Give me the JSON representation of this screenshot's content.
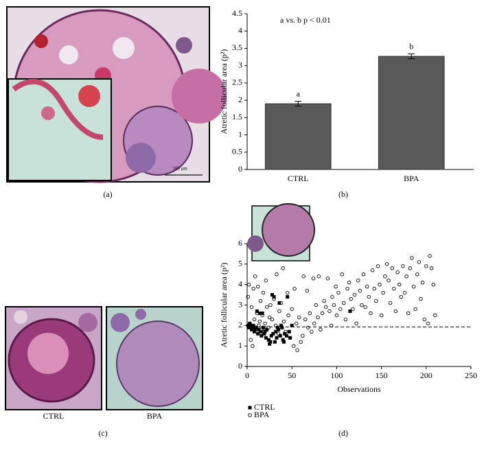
{
  "panel_labels": [
    "(a)",
    "(b)",
    "(c)",
    "(d)"
  ],
  "micrographs": {
    "scale_label": "100 μm",
    "captions": [
      "CTRL",
      "BPA"
    ]
  },
  "chart_data": [
    {
      "type": "bar",
      "y_label": "Atretic follicular area (p²)",
      "annotation": "a vs. b p < 0.01",
      "categories": [
        "CTRL",
        "BPA"
      ],
      "values": [
        1.9,
        3.27
      ],
      "errors": [
        0.07,
        0.07
      ],
      "group_letters": [
        "a",
        "b"
      ],
      "color": "#595959",
      "ylim": [
        0,
        4.5
      ],
      "yticks": [
        0,
        0.5,
        1,
        1.5,
        2,
        2.5,
        3,
        3.5,
        4,
        4.5
      ]
    },
    {
      "type": "scatter",
      "y_label": "Atretic follicular area (p²)",
      "x_label": "Observations",
      "xlim": [
        0,
        250
      ],
      "xticks": [
        0,
        50,
        100,
        150,
        200,
        250
      ],
      "ylim": [
        0,
        6
      ],
      "yticks": [
        0,
        1,
        2,
        3,
        4,
        5,
        6
      ],
      "reference_line": 1.93,
      "series": [
        {
          "name": "CTRL",
          "color": "#000000",
          "marker": "square",
          "x": [
            1,
            2,
            3,
            4,
            5,
            6,
            7,
            8,
            9,
            10,
            11,
            12,
            13,
            14,
            15,
            16,
            17,
            18,
            19,
            20,
            21,
            22,
            24,
            25,
            26,
            27,
            28,
            29,
            30,
            31,
            32,
            33,
            34,
            35,
            36,
            37,
            38,
            39,
            40,
            41,
            42,
            44,
            45,
            47,
            48,
            50,
            115
          ],
          "values": [
            2.0,
            1.9,
            2.1,
            2.0,
            1.8,
            1.9,
            2.0,
            1.7,
            1.8,
            1.9,
            2.7,
            1.6,
            1.8,
            2.6,
            1.7,
            1.5,
            2.6,
            1.9,
            1.6,
            1.7,
            1.4,
            1.8,
            1.3,
            1.1,
            1.2,
            1.5,
            3.5,
            1.6,
            3.4,
            1.2,
            1.7,
            1.4,
            1.9,
            1.8,
            3.1,
            1.5,
            2.0,
            1.9,
            1.3,
            1.2,
            1.6,
            1.5,
            3.4,
            1.7,
            1.4,
            2.0,
            2.7
          ]
        },
        {
          "name": "BPA",
          "color": "#000000",
          "marker": "open-circle",
          "x": [
            1,
            2,
            3,
            4,
            5,
            6,
            7,
            8,
            9,
            10,
            11,
            12,
            13,
            14,
            15,
            16,
            17,
            18,
            19,
            20,
            21,
            22,
            24,
            25,
            26,
            28,
            30,
            32,
            33,
            35,
            36,
            38,
            40,
            41,
            43,
            45,
            46,
            48,
            50,
            52,
            53,
            55,
            56,
            58,
            60,
            62,
            63,
            65,
            67,
            68,
            70,
            72,
            74,
            75,
            77,
            79,
            80,
            82,
            84,
            86,
            88,
            90,
            92,
            94,
            95,
            97,
            99,
            100,
            102,
            104,
            106,
            108,
            110,
            112,
            114,
            116,
            118,
            120,
            122,
            124,
            126,
            128,
            130,
            132,
            134,
            136,
            138,
            140,
            142,
            144,
            146,
            148,
            150,
            152,
            154,
            156,
            158,
            160,
            162,
            164,
            166,
            168,
            170,
            172,
            174,
            176,
            178,
            180,
            182,
            184,
            186,
            188,
            190,
            192,
            194,
            196,
            198,
            200,
            202,
            204,
            206,
            208,
            210
          ],
          "values": [
            3.4,
            4.0,
            2.1,
            1.3,
            2.9,
            1.0,
            3.8,
            2.3,
            4.4,
            1.9,
            2.6,
            3.9,
            2.0,
            2.2,
            3.2,
            1.8,
            2.5,
            3.6,
            1.7,
            2.1,
            4.2,
            2.9,
            1.9,
            2.4,
            3.0,
            2.3,
            3.3,
            2.0,
            4.5,
            1.6,
            2.7,
            3.1,
            4.8,
            2.2,
            1.7,
            3.6,
            2.5,
            1.4,
            2.8,
            1.0,
            3.8,
            2.1,
            0.8,
            2.4,
            1.2,
            1.5,
            4.4,
            2.3,
            3.7,
            1.9,
            2.6,
            1.7,
            4.3,
            2.1,
            3.0,
            2.4,
            4.4,
            1.8,
            2.6,
            3.2,
            2.9,
            4.3,
            2.7,
            2.0,
            3.4,
            3.0,
            3.9,
            2.5,
            3.6,
            2.8,
            4.5,
            3.1,
            2.3,
            3.8,
            4.1,
            3.3,
            2.8,
            3.5,
            2.1,
            4.2,
            3.7,
            3.0,
            4.5,
            2.9,
            3.9,
            3.4,
            2.6,
            4.7,
            3.8,
            3.2,
            4.9,
            4.0,
            2.5,
            3.6,
            4.4,
            5.0,
            4.2,
            3.1,
            4.8,
            3.8,
            2.7,
            4.6,
            4.0,
            3.4,
            4.9,
            3.6,
            4.4,
            2.6,
            4.8,
            5.3,
            3.9,
            2.8,
            4.5,
            5.1,
            3.3,
            4.1,
            2.3,
            4.9,
            2.1,
            5.4,
            4.8,
            4.0,
            2.5
          ]
        }
      ]
    }
  ]
}
